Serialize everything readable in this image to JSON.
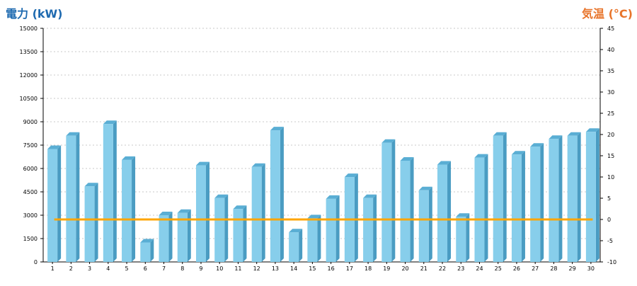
{
  "chart_data": {
    "type": "bar",
    "title": "",
    "xlabel": "",
    "ylabel": "電力 (kW)",
    "y2label": "気温 (°C)",
    "categories": [
      "1",
      "2",
      "3",
      "4",
      "5",
      "6",
      "7",
      "8",
      "9",
      "10",
      "11",
      "12",
      "13",
      "14",
      "15",
      "16",
      "17",
      "18",
      "19",
      "20",
      "21",
      "22",
      "23",
      "24",
      "25",
      "26",
      "27",
      "28",
      "29",
      "30"
    ],
    "series": [
      {
        "name": "",
        "axis": "left",
        "type": "bar",
        "values": [
          7250,
          8100,
          4850,
          8850,
          6550,
          1250,
          3000,
          3150,
          6200,
          4100,
          3400,
          6100,
          8450,
          1900,
          2800,
          4050,
          5450,
          4100,
          7650,
          6500,
          4600,
          6250,
          2900,
          6700,
          8100,
          6900,
          7400,
          7900,
          8100,
          8350
        ]
      },
      {
        "name": "",
        "axis": "right",
        "type": "line",
        "values": [
          0,
          0,
          0,
          0,
          0,
          0,
          0,
          0,
          0,
          0,
          0,
          0,
          0,
          0,
          0,
          0,
          0,
          0,
          0,
          0,
          0,
          0,
          0,
          0,
          0,
          0,
          0,
          0,
          0,
          0
        ]
      }
    ],
    "ylim": [
      0,
      15000
    ],
    "yticks": [
      0,
      1500,
      3000,
      4500,
      6000,
      7500,
      9000,
      10500,
      12000,
      13500,
      15000
    ],
    "y2lim": [
      -10,
      45
    ],
    "y2ticks": [
      -10,
      -5,
      0,
      5,
      10,
      15,
      20,
      25,
      30,
      35,
      40,
      45
    ],
    "grid": true,
    "colors": {
      "bar_front": "#87ceeb",
      "bar_side": "#4a9cc2",
      "bar_top": "#5aaed4",
      "line": "#ffa500",
      "left_title": "#1e6ab0",
      "right_title": "#e8742a",
      "grid": "#c8c8c8",
      "axis": "#000000"
    }
  }
}
